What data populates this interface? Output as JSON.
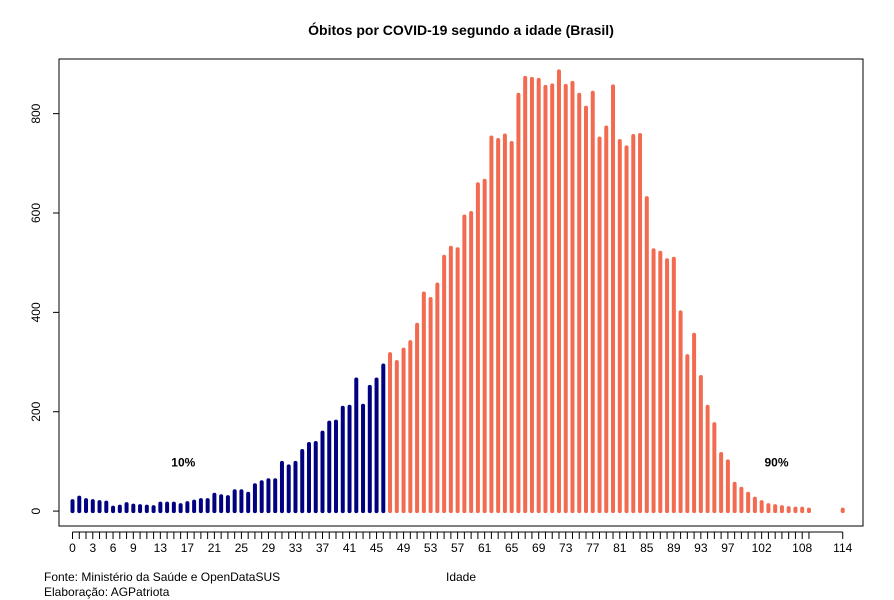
{
  "footer": {
    "source": "Fonte: Ministério da Saúde e OpenDataSUS",
    "author": "Elaboração: AGPatriota"
  },
  "colors": {
    "below_threshold": "#000080",
    "above_threshold": "#f26a4f",
    "axis": "#000000",
    "background": "#ffffff"
  },
  "chart_data": {
    "type": "bar",
    "title": "Óbitos por COVID-19 segundo a idade (Brasil)",
    "xlabel": "Idade",
    "ylabel": "",
    "xlim": [
      -2,
      117
    ],
    "ylim": [
      -30,
      910
    ],
    "y_ticks": [
      0,
      200,
      400,
      600,
      800
    ],
    "x_ticks": [
      0,
      1,
      2,
      3,
      4,
      5,
      6,
      7,
      8,
      9,
      10,
      11,
      12,
      13,
      14,
      15,
      16,
      17,
      18,
      19,
      20,
      21,
      22,
      23,
      24,
      25,
      26,
      27,
      28,
      29,
      30,
      31,
      32,
      33,
      34,
      35,
      36,
      37,
      38,
      39,
      40,
      41,
      42,
      43,
      44,
      45,
      46,
      47,
      48,
      49,
      50,
      51,
      52,
      53,
      54,
      55,
      56,
      57,
      58,
      59,
      60,
      61,
      62,
      63,
      64,
      65,
      66,
      67,
      68,
      69,
      70,
      71,
      72,
      73,
      74,
      75,
      76,
      77,
      78,
      79,
      80,
      81,
      82,
      83,
      84,
      85,
      86,
      87,
      88,
      89,
      90,
      91,
      92,
      93,
      94,
      95,
      96,
      97,
      98,
      99,
      100,
      101,
      102,
      103,
      104,
      105,
      106,
      107,
      108,
      109,
      114
    ],
    "x_tick_labels": [
      {
        "x": 0,
        "label": "0"
      },
      {
        "x": 3,
        "label": "3"
      },
      {
        "x": 6,
        "label": "6"
      },
      {
        "x": 9,
        "label": "9"
      },
      {
        "x": 13,
        "label": "13"
      },
      {
        "x": 17,
        "label": "17"
      },
      {
        "x": 21,
        "label": "21"
      },
      {
        "x": 25,
        "label": "25"
      },
      {
        "x": 29,
        "label": "29"
      },
      {
        "x": 33,
        "label": "33"
      },
      {
        "x": 37,
        "label": "37"
      },
      {
        "x": 41,
        "label": "41"
      },
      {
        "x": 45,
        "label": "45"
      },
      {
        "x": 49,
        "label": "49"
      },
      {
        "x": 53,
        "label": "53"
      },
      {
        "x": 57,
        "label": "57"
      },
      {
        "x": 61,
        "label": "61"
      },
      {
        "x": 65,
        "label": "65"
      },
      {
        "x": 69,
        "label": "69"
      },
      {
        "x": 73,
        "label": "73"
      },
      {
        "x": 77,
        "label": "77"
      },
      {
        "x": 81,
        "label": "81"
      },
      {
        "x": 85,
        "label": "85"
      },
      {
        "x": 89,
        "label": "89"
      },
      {
        "x": 93,
        "label": "93"
      },
      {
        "x": 97,
        "label": "97"
      },
      {
        "x": 102,
        "label": "102"
      },
      {
        "x": 108,
        "label": "108"
      },
      {
        "x": 114,
        "label": "114"
      }
    ],
    "threshold_age": 46,
    "x": [
      0,
      1,
      2,
      3,
      4,
      5,
      6,
      7,
      8,
      9,
      10,
      11,
      12,
      13,
      14,
      15,
      16,
      17,
      18,
      19,
      20,
      21,
      22,
      23,
      24,
      25,
      26,
      27,
      28,
      29,
      30,
      31,
      32,
      33,
      34,
      35,
      36,
      37,
      38,
      39,
      40,
      41,
      42,
      43,
      44,
      45,
      46,
      47,
      48,
      49,
      50,
      51,
      52,
      53,
      54,
      55,
      56,
      57,
      58,
      59,
      60,
      61,
      62,
      63,
      64,
      65,
      66,
      67,
      68,
      69,
      70,
      71,
      72,
      73,
      74,
      75,
      76,
      77,
      78,
      79,
      80,
      81,
      82,
      83,
      84,
      85,
      86,
      87,
      88,
      89,
      90,
      91,
      92,
      93,
      94,
      95,
      96,
      97,
      98,
      99,
      100,
      101,
      102,
      103,
      104,
      105,
      106,
      107,
      108,
      109,
      114
    ],
    "values": [
      20,
      27,
      22,
      20,
      18,
      17,
      7,
      9,
      14,
      11,
      10,
      9,
      8,
      15,
      15,
      15,
      12,
      16,
      19,
      22,
      22,
      33,
      30,
      28,
      40,
      40,
      35,
      52,
      58,
      62,
      62,
      97,
      90,
      97,
      121,
      135,
      137,
      158,
      178,
      180,
      208,
      210,
      265,
      212,
      250,
      265,
      293,
      316,
      300,
      325,
      340,
      375,
      438,
      427,
      456,
      512,
      530,
      527,
      593,
      600,
      658,
      665,
      752,
      747,
      756,
      741,
      838,
      872,
      870,
      868,
      854,
      857,
      885,
      856,
      862,
      838,
      812,
      842,
      750,
      772,
      855,
      745,
      732,
      755,
      757,
      630,
      525,
      520,
      505,
      508,
      400,
      312,
      355,
      270,
      210,
      175,
      115,
      100,
      55,
      45,
      35,
      25,
      18,
      12,
      10,
      8,
      6,
      5,
      5,
      3,
      3
    ],
    "annotations": [
      {
        "text": "10%",
        "x": 16.4,
        "y": 98
      },
      {
        "text": "90%",
        "x": 104.2,
        "y": 98
      }
    ]
  }
}
